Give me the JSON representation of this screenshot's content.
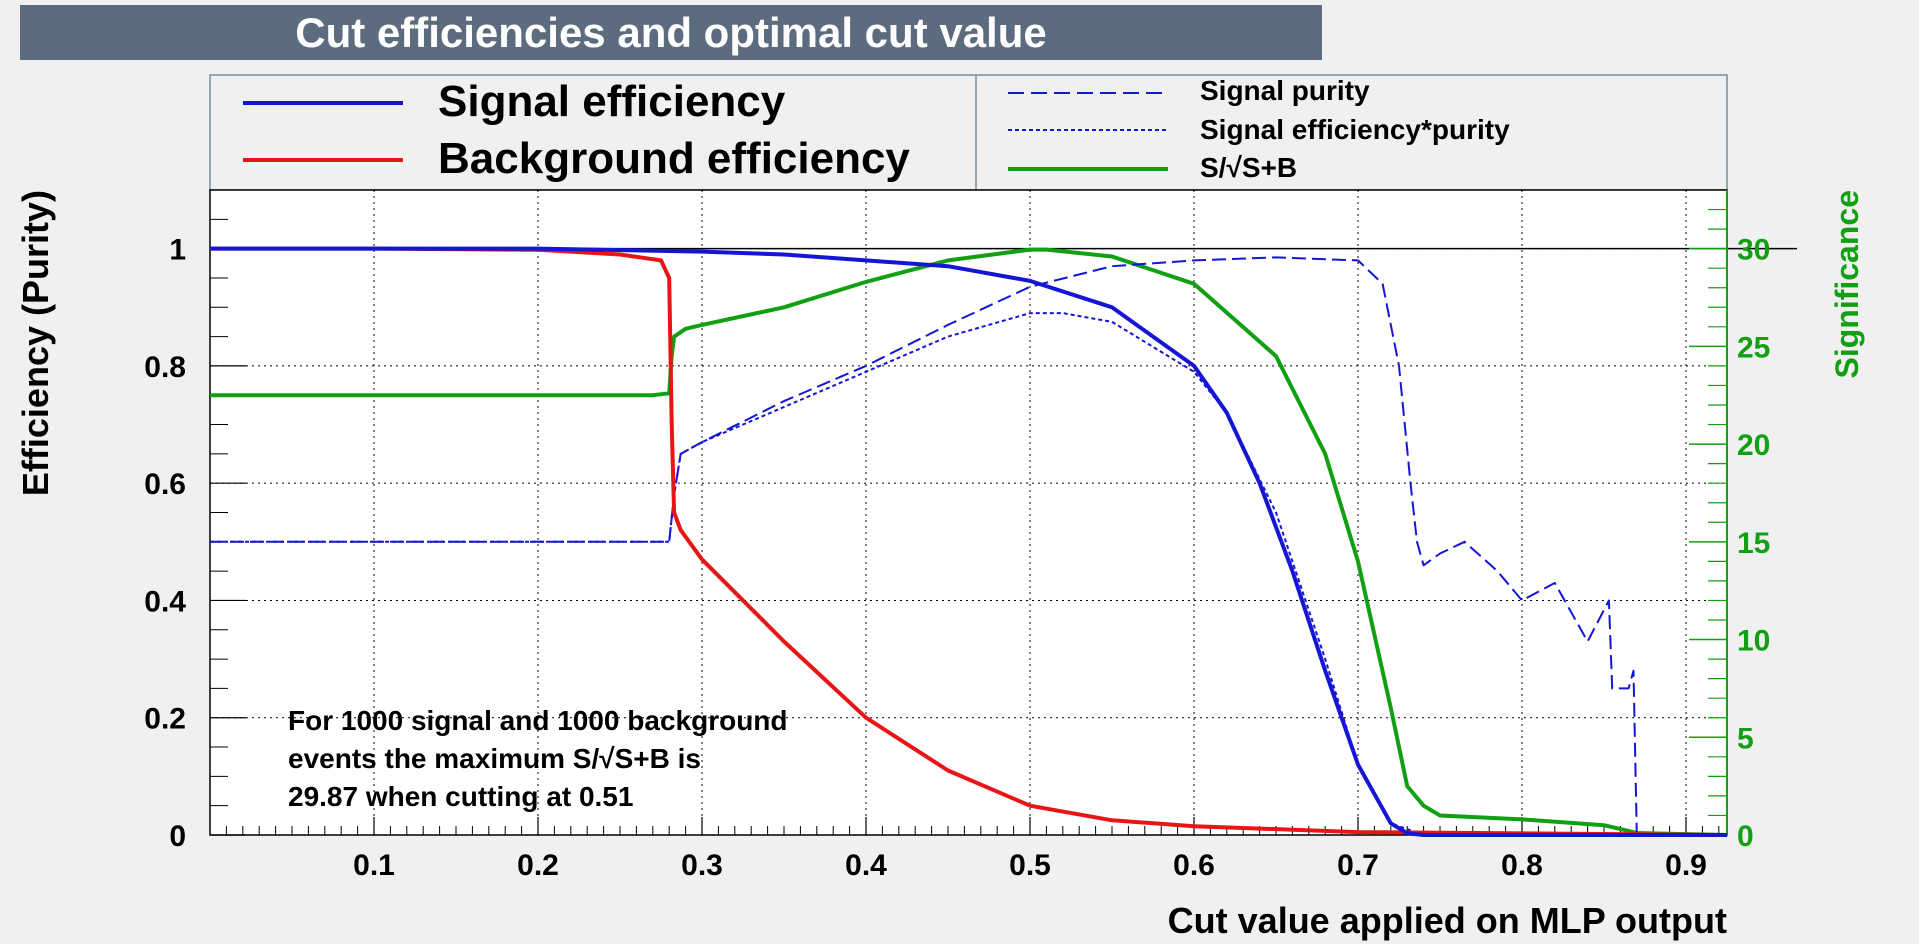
{
  "title": "Cut efficiencies and optimal cut value",
  "colors": {
    "signal": "#1515d6",
    "background": "#e81515",
    "significance": "#11a011",
    "axis": "#000000",
    "frame_fill": "#ffffff",
    "canvas": "#f0f0f0",
    "title_bar": "#5c6b7d"
  },
  "legend": {
    "left": [
      {
        "name": "Signal efficiency",
        "color": "#1515d6",
        "style": "solid"
      },
      {
        "name": "Background efficiency",
        "color": "#e81515",
        "style": "solid"
      }
    ],
    "right": [
      {
        "name": "Signal purity",
        "color": "#1515d6",
        "style": "dashed"
      },
      {
        "name": "Signal efficiency*purity",
        "color": "#1515d6",
        "style": "dotted"
      },
      {
        "name": "S/√S+B",
        "color": "#11a011",
        "style": "solid"
      }
    ]
  },
  "annotation": [
    "For 1000 signal and 1000 background",
    "events the maximum S/√S+B is",
    "29.87 when cutting at  0.51"
  ],
  "chart_data": {
    "type": "line",
    "xlabel": "Cut value applied on MLP output",
    "ylabel": "Efficiency (Purity)",
    "y2label": "Significance",
    "xlim": [
      0.0,
      0.925
    ],
    "ylim": [
      0,
      1.1
    ],
    "y2lim": [
      0,
      33
    ],
    "xticks": [
      0.1,
      0.2,
      0.3,
      0.4,
      0.5,
      0.6,
      0.7,
      0.8,
      0.9
    ],
    "yticks": [
      0,
      0.2,
      0.4,
      0.6,
      0.8,
      1
    ],
    "y2ticks": [
      0,
      5,
      10,
      15,
      20,
      25,
      30
    ],
    "xtick_labels": [
      "0.1",
      "0.2",
      "0.3",
      "0.4",
      "0.5",
      "0.6",
      "0.7",
      "0.8",
      "0.9"
    ],
    "ytick_labels": [
      "0",
      "0.2",
      "0.4",
      "0.6",
      "0.8",
      "1"
    ],
    "y2tick_labels": [
      "0",
      "5",
      "10",
      "15",
      "20",
      "25",
      "30"
    ],
    "grid": true,
    "reference_line_y": 1,
    "series": [
      {
        "name": "Signal efficiency",
        "axis": "left",
        "style": "solid",
        "color": "#1515d6",
        "x": [
          0,
          0.1,
          0.2,
          0.3,
          0.35,
          0.4,
          0.45,
          0.5,
          0.55,
          0.6,
          0.62,
          0.64,
          0.66,
          0.68,
          0.7,
          0.72,
          0.73,
          0.74,
          0.925
        ],
        "y": [
          1,
          1,
          1,
          0.995,
          0.99,
          0.98,
          0.97,
          0.945,
          0.9,
          0.8,
          0.72,
          0.6,
          0.45,
          0.28,
          0.12,
          0.02,
          0.003,
          0,
          0
        ]
      },
      {
        "name": "Background efficiency",
        "axis": "left",
        "style": "solid",
        "color": "#e81515",
        "x": [
          0,
          0.1,
          0.2,
          0.25,
          0.275,
          0.28,
          0.2815,
          0.283,
          0.287,
          0.3,
          0.35,
          0.4,
          0.45,
          0.5,
          0.55,
          0.6,
          0.7,
          0.925
        ],
        "y": [
          1,
          1,
          0.998,
          0.99,
          0.98,
          0.95,
          0.7,
          0.55,
          0.52,
          0.47,
          0.33,
          0.2,
          0.11,
          0.05,
          0.025,
          0.015,
          0.005,
          0
        ]
      },
      {
        "name": "Signal purity",
        "axis": "left",
        "style": "dashed",
        "color": "#1515d6",
        "x": [
          0,
          0.27,
          0.28,
          0.283,
          0.287,
          0.3,
          0.35,
          0.4,
          0.45,
          0.5,
          0.55,
          0.6,
          0.65,
          0.7,
          0.715,
          0.725,
          0.732,
          0.736,
          0.74,
          0.75,
          0.765,
          0.785,
          0.8,
          0.82,
          0.84,
          0.853,
          0.855,
          0.865,
          0.868,
          0.87,
          0.925
        ],
        "y": [
          0.5,
          0.5,
          0.5,
          0.58,
          0.65,
          0.67,
          0.74,
          0.8,
          0.87,
          0.935,
          0.97,
          0.98,
          0.985,
          0.98,
          0.94,
          0.8,
          0.6,
          0.5,
          0.46,
          0.48,
          0.5,
          0.45,
          0.4,
          0.43,
          0.33,
          0.4,
          0.25,
          0.25,
          0.28,
          0,
          0
        ]
      },
      {
        "name": "Signal efficiency*purity",
        "axis": "left",
        "style": "dotted",
        "color": "#1515d6",
        "x": [
          0,
          0.27,
          0.28,
          0.283,
          0.287,
          0.3,
          0.35,
          0.4,
          0.45,
          0.5,
          0.52,
          0.55,
          0.6,
          0.62,
          0.65,
          0.68,
          0.7,
          0.72,
          0.74,
          0.925
        ],
        "y": [
          0.5,
          0.5,
          0.5,
          0.58,
          0.65,
          0.67,
          0.73,
          0.79,
          0.85,
          0.89,
          0.89,
          0.875,
          0.79,
          0.72,
          0.55,
          0.3,
          0.12,
          0.02,
          0,
          0
        ]
      },
      {
        "name": "S/√S+B",
        "axis": "right",
        "style": "solid",
        "color": "#11a011",
        "x": [
          0,
          0.27,
          0.28,
          0.2815,
          0.283,
          0.29,
          0.3,
          0.35,
          0.4,
          0.45,
          0.5,
          0.51,
          0.55,
          0.6,
          0.65,
          0.68,
          0.7,
          0.72,
          0.73,
          0.74,
          0.75,
          0.8,
          0.85,
          0.86,
          0.87,
          0.925
        ],
        "y": [
          22.5,
          22.5,
          22.6,
          24.5,
          25.5,
          25.9,
          26.1,
          27,
          28.3,
          29.4,
          29.95,
          29.95,
          29.6,
          28.2,
          24.5,
          19.5,
          14,
          6.5,
          2.5,
          1.5,
          1.0,
          0.8,
          0.5,
          0.3,
          0.1,
          0
        ]
      }
    ]
  }
}
